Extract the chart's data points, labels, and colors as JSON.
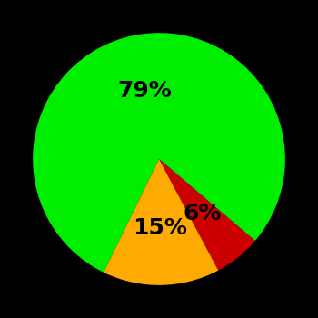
{
  "slices": [
    79,
    6,
    15
  ],
  "colors": [
    "#00ee00",
    "#cc0000",
    "#ffaa00"
  ],
  "labels": [
    "79%",
    "6%",
    "15%"
  ],
  "background_color": "#000000",
  "text_color": "#000000",
  "figsize": [
    3.5,
    3.5
  ],
  "dpi": 100,
  "startangle": -116,
  "label_fontsize": 18,
  "label_fontweight": "bold",
  "label_radii": [
    0.55,
    0.55,
    0.55
  ]
}
